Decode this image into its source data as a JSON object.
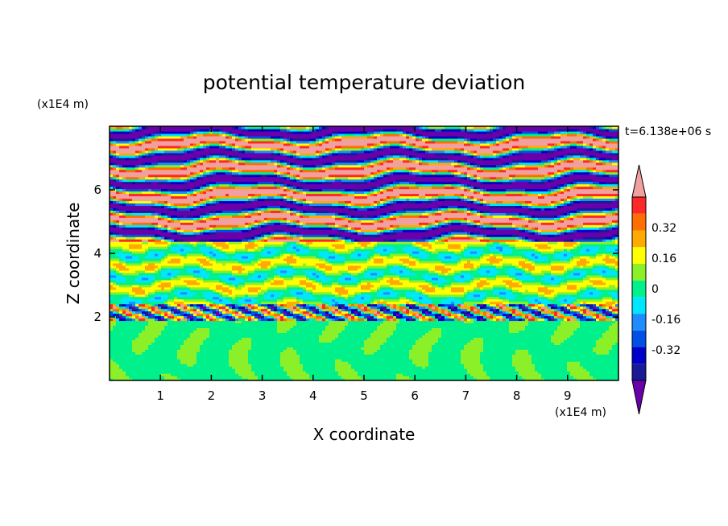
{
  "chart_data": {
    "type": "heatmap",
    "title": "potential temperature deviation",
    "xlabel": "X coordinate",
    "ylabel": "Z coordinate",
    "x_unit": "(x1E4 m)",
    "y_unit": "(x1E4 m)",
    "time_label": "t=6.138e+06 s",
    "xlim": [
      0,
      10
    ],
    "ylim": [
      0,
      8
    ],
    "x_ticks": [
      1,
      2,
      3,
      4,
      5,
      6,
      7,
      8,
      9
    ],
    "y_ticks": [
      2,
      4,
      6
    ],
    "colorbar": {
      "levels": [
        -0.48,
        -0.4,
        -0.32,
        -0.24,
        -0.16,
        -0.08,
        0,
        0.08,
        0.16,
        0.24,
        0.32,
        0.4,
        0.48
      ],
      "colors": [
        "#6a00aa",
        "#1a1a96",
        "#0000c8",
        "#0050e6",
        "#1e8cff",
        "#00e6ff",
        "#00f08c",
        "#8cf028",
        "#ffff00",
        "#ffaa00",
        "#ff6e00",
        "#ff2828",
        "#f0a0a0"
      ],
      "tick_labels": [
        "0.32",
        "0.16",
        "0",
        "-0.16",
        "-0.32"
      ],
      "tick_values": [
        0.32,
        0.16,
        0,
        -0.16,
        -0.32
      ],
      "extend": "both"
    },
    "layers": [
      {
        "z_range": [
          0,
          1.9
        ],
        "dominant": [
          0,
          0.08
        ],
        "note": "green cellular plumes"
      },
      {
        "z_range": [
          1.9,
          2.4
        ],
        "dominant": [
          -0.48,
          0.48
        ],
        "note": "mixed band"
      },
      {
        "z_range": [
          2.4,
          4.4
        ],
        "dominant": [
          -0.08,
          0.24
        ],
        "note": "green/cyan with yellow and red streaks"
      },
      {
        "z_range": [
          4.4,
          8.0
        ],
        "dominant": [
          -0.48,
          0.48
        ],
        "note": "alternating purple and pink stripes"
      }
    ]
  }
}
